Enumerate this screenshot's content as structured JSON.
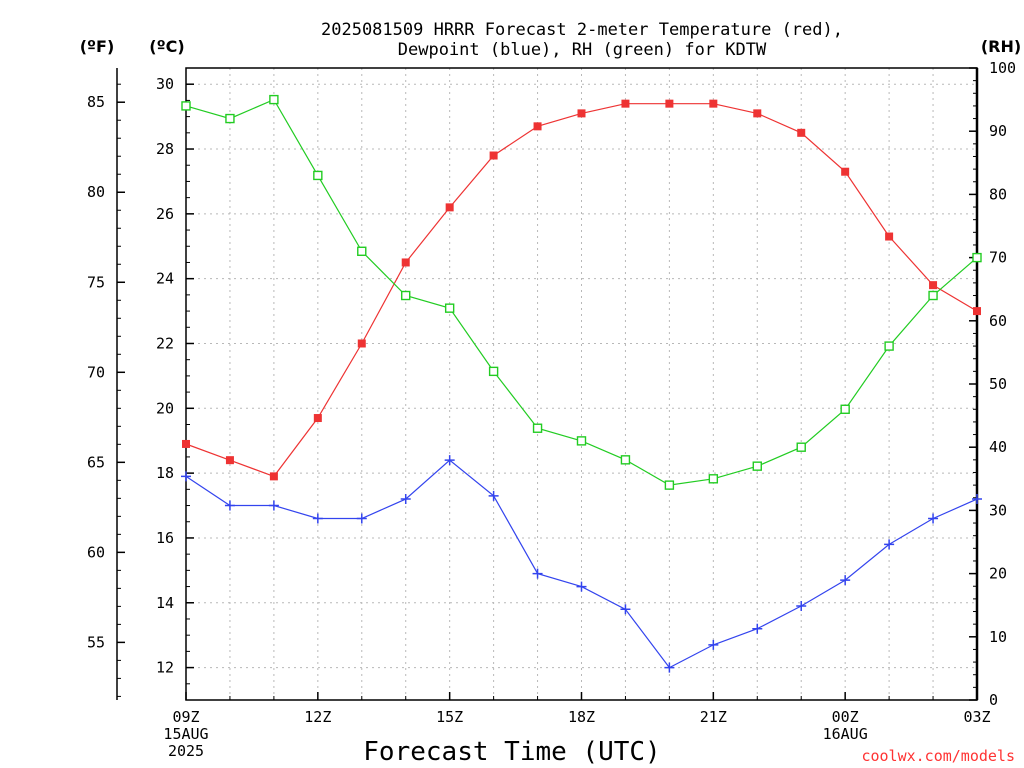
{
  "chart_data": {
    "type": "line",
    "title": "2025081509 HRRR Forecast 2-meter Temperature (red),",
    "title_line2": "Dewpoint (blue), RH (green) for KDTW",
    "xlabel": "Forecast Time (UTC)",
    "unit_fahrenheit": "(ºF)",
    "unit_celsius": "(ºC)",
    "unit_rh": "(RH)",
    "credit": "coolwx.com/models",
    "x": [
      "09Z",
      "10Z",
      "11Z",
      "12Z",
      "13Z",
      "14Z",
      "15Z",
      "16Z",
      "17Z",
      "18Z",
      "19Z",
      "20Z",
      "21Z",
      "22Z",
      "23Z",
      "00Z",
      "01Z",
      "02Z",
      "03Z"
    ],
    "x_tick_labels": [
      {
        "index": 0,
        "lines": [
          "09Z",
          "15AUG",
          "2025"
        ]
      },
      {
        "index": 3,
        "lines": [
          "12Z"
        ]
      },
      {
        "index": 6,
        "lines": [
          "15Z"
        ]
      },
      {
        "index": 9,
        "lines": [
          "18Z"
        ]
      },
      {
        "index": 12,
        "lines": [
          "21Z"
        ]
      },
      {
        "index": 15,
        "lines": [
          "00Z",
          "16AUG"
        ]
      },
      {
        "index": 18,
        "lines": [
          "03Z"
        ]
      }
    ],
    "celsius_axis": {
      "range": [
        11,
        30.5
      ],
      "ticks": [
        "12",
        "14",
        "16",
        "18",
        "20",
        "22",
        "24",
        "26",
        "28",
        "30"
      ]
    },
    "fahrenheit_axis": {
      "ticks": [
        "55",
        "60",
        "65",
        "70",
        "75",
        "80",
        "85"
      ]
    },
    "rh_axis": {
      "range": [
        0,
        100
      ],
      "ticks": [
        "0",
        "10",
        "20",
        "30",
        "40",
        "50",
        "60",
        "70",
        "80",
        "90",
        "100"
      ]
    },
    "grid": true,
    "series": [
      {
        "name": "Temperature",
        "axis": "celsius",
        "color": "#ee3333",
        "marker": "filled-square",
        "values": [
          18.9,
          18.4,
          17.9,
          19.7,
          22.0,
          24.5,
          26.2,
          27.8,
          28.7,
          29.1,
          29.4,
          29.4,
          29.4,
          29.1,
          28.5,
          27.3,
          25.3,
          23.8,
          23.0
        ]
      },
      {
        "name": "Dewpoint",
        "axis": "celsius",
        "color": "#3344ee",
        "marker": "plus",
        "values": [
          17.9,
          17.0,
          17.0,
          16.6,
          16.6,
          17.2,
          18.4,
          17.3,
          14.9,
          14.5,
          13.8,
          12.0,
          12.7,
          13.2,
          13.9,
          14.7,
          15.8,
          16.6,
          17.2
        ]
      },
      {
        "name": "RH",
        "axis": "rh",
        "color": "#22cc22",
        "marker": "open-square",
        "values": [
          94,
          92,
          95,
          83,
          71,
          64,
          62,
          52,
          43,
          41,
          38,
          34,
          35,
          37,
          40,
          46,
          56,
          64,
          70
        ]
      }
    ]
  }
}
